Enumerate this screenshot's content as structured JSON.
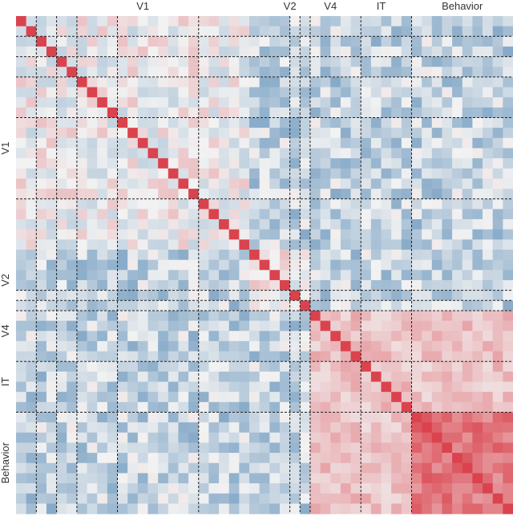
{
  "chart_data": {
    "type": "heatmap",
    "size": 49,
    "groups": [
      {
        "name": "V1",
        "start": 0,
        "end": 29
      },
      {
        "name": "V2",
        "start": 23,
        "end": 29
      },
      {
        "name": "V4",
        "start": 29,
        "end": 34
      },
      {
        "name": "IT",
        "start": 34,
        "end": 39
      },
      {
        "name": "Behavior",
        "start": 39,
        "end": 49
      }
    ],
    "top_labels": [
      {
        "text": "V1",
        "col": 12.5
      },
      {
        "text": "V2",
        "col": 27.0
      },
      {
        "text": "V4",
        "col": 31.0
      },
      {
        "text": "IT",
        "col": 36.0
      },
      {
        "text": "Behavior",
        "col": 44.0
      }
    ],
    "left_labels": [
      {
        "text": "V1",
        "row": 13.0
      },
      {
        "text": "V2",
        "row": 26.0
      },
      {
        "text": "V4",
        "row": 31.0
      },
      {
        "text": "IT",
        "row": 36.0
      },
      {
        "text": "Behavior",
        "row": 44.0
      }
    ],
    "dividers": [
      2,
      4,
      6,
      10,
      18,
      27,
      28,
      29,
      34,
      39
    ],
    "color_scale": {
      "negative": "#2f6fa6",
      "neutral": "#f2f2f2",
      "positive": "#d7303b",
      "vmin": -1,
      "vmax": 1
    }
  }
}
